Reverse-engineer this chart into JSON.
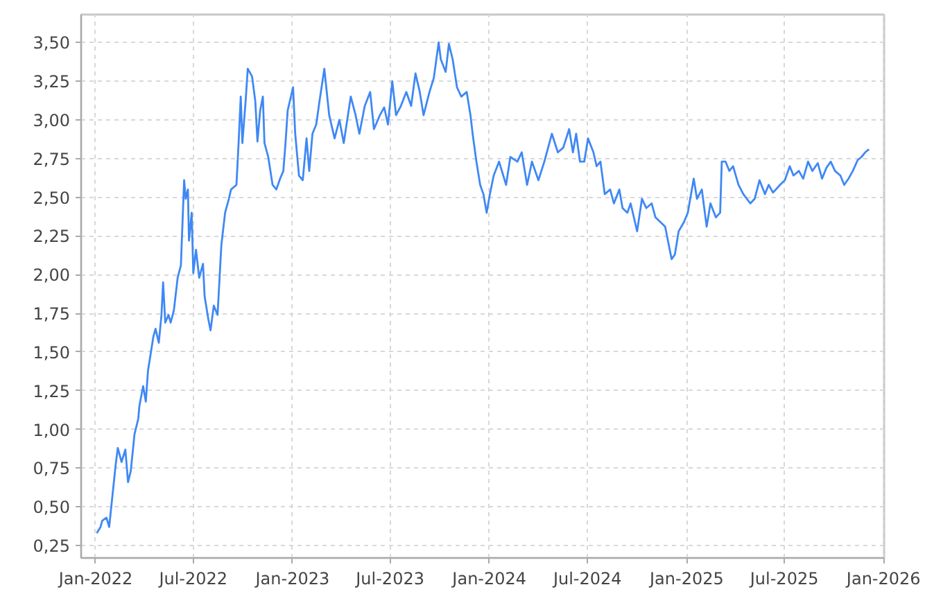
{
  "chart_data": {
    "type": "line",
    "x": [
      "2022-01-03",
      "2022-01-10",
      "2022-01-13",
      "2022-01-21",
      "2022-01-26",
      "2022-02-07",
      "2022-02-11",
      "2022-02-18",
      "2022-02-25",
      "2022-03-02",
      "2022-03-07",
      "2022-03-14",
      "2022-03-21",
      "2022-03-23",
      "2022-03-30",
      "2022-04-04",
      "2022-04-08",
      "2022-04-18",
      "2022-04-22",
      "2022-04-28",
      "2022-05-03",
      "2022-05-06",
      "2022-05-10",
      "2022-05-16",
      "2022-05-20",
      "2022-05-26",
      "2022-06-02",
      "2022-06-08",
      "2022-06-14",
      "2022-06-17",
      "2022-06-21",
      "2022-06-23",
      "2022-06-28",
      "2022-07-01",
      "2022-07-06",
      "2022-07-12",
      "2022-07-19",
      "2022-07-22",
      "2022-07-29",
      "2022-08-02",
      "2022-08-08",
      "2022-08-15",
      "2022-08-22",
      "2022-08-29",
      "2022-09-05",
      "2022-09-09",
      "2022-09-19",
      "2022-09-23",
      "2022-09-27",
      "2022-09-30",
      "2022-10-06",
      "2022-10-10",
      "2022-10-18",
      "2022-10-24",
      "2022-10-28",
      "2022-11-02",
      "2022-11-07",
      "2022-11-10",
      "2022-11-17",
      "2022-11-25",
      "2022-12-02",
      "2022-12-09",
      "2022-12-15",
      "2022-12-19",
      "2022-12-23",
      "2023-01-02",
      "2023-01-06",
      "2023-01-13",
      "2023-01-20",
      "2023-01-27",
      "2023-02-01",
      "2023-02-07",
      "2023-02-14",
      "2023-02-20",
      "2023-03-01",
      "2023-03-10",
      "2023-03-20",
      "2023-03-29",
      "2023-04-06",
      "2023-04-19",
      "2023-04-28",
      "2023-05-05",
      "2023-05-15",
      "2023-05-25",
      "2023-06-01",
      "2023-06-12",
      "2023-06-20",
      "2023-06-27",
      "2023-07-05",
      "2023-07-12",
      "2023-07-21",
      "2023-07-31",
      "2023-08-09",
      "2023-08-17",
      "2023-08-25",
      "2023-09-01",
      "2023-09-12",
      "2023-09-20",
      "2023-09-29",
      "2023-10-03",
      "2023-10-12",
      "2023-10-18",
      "2023-10-25",
      "2023-11-02",
      "2023-11-10",
      "2023-11-20",
      "2023-11-27",
      "2023-12-01",
      "2023-12-08",
      "2023-12-15",
      "2023-12-21",
      "2023-12-27",
      "2024-01-02",
      "2024-01-09",
      "2024-01-19",
      "2024-02-01",
      "2024-02-09",
      "2024-02-22",
      "2024-03-01",
      "2024-03-11",
      "2024-03-20",
      "2024-04-01",
      "2024-04-12",
      "2024-04-26",
      "2024-05-07",
      "2024-05-17",
      "2024-05-28",
      "2024-06-04",
      "2024-06-10",
      "2024-06-17",
      "2024-06-25",
      "2024-07-02",
      "2024-07-12",
      "2024-07-18",
      "2024-07-25",
      "2024-08-02",
      "2024-08-12",
      "2024-08-19",
      "2024-08-29",
      "2024-09-04",
      "2024-09-13",
      "2024-09-19",
      "2024-10-01",
      "2024-10-10",
      "2024-10-18",
      "2024-10-28",
      "2024-11-04",
      "2024-11-13",
      "2024-11-22",
      "2024-12-04",
      "2024-12-10",
      "2024-12-17",
      "2024-12-27",
      "2025-01-03",
      "2025-01-14",
      "2025-01-20",
      "2025-01-29",
      "2025-02-07",
      "2025-02-14",
      "2025-02-24",
      "2025-03-04",
      "2025-03-07",
      "2025-03-14",
      "2025-03-21",
      "2025-03-28",
      "2025-04-07",
      "2025-04-16",
      "2025-04-29",
      "2025-05-07",
      "2025-05-16",
      "2025-05-26",
      "2025-06-02",
      "2025-06-10",
      "2025-06-23",
      "2025-07-02",
      "2025-07-11",
      "2025-07-18",
      "2025-07-28",
      "2025-08-05",
      "2025-08-14",
      "2025-08-22",
      "2025-09-01",
      "2025-09-09",
      "2025-09-17",
      "2025-09-25",
      "2025-10-03",
      "2025-10-13",
      "2025-10-20",
      "2025-10-28",
      "2025-11-05",
      "2025-11-14",
      "2025-11-21",
      "2025-11-28",
      "2025-12-05"
    ],
    "values": [
      0.33,
      0.37,
      0.41,
      0.43,
      0.37,
      0.77,
      0.88,
      0.79,
      0.87,
      0.66,
      0.73,
      0.97,
      1.07,
      1.15,
      1.28,
      1.18,
      1.38,
      1.6,
      1.65,
      1.56,
      1.74,
      1.95,
      1.69,
      1.74,
      1.69,
      1.77,
      1.98,
      2.06,
      2.61,
      2.49,
      2.55,
      2.22,
      2.4,
      2.01,
      2.16,
      1.98,
      2.07,
      1.86,
      1.71,
      1.64,
      1.8,
      1.74,
      2.19,
      2.4,
      2.49,
      2.55,
      2.58,
      2.85,
      3.15,
      2.85,
      3.12,
      3.33,
      3.28,
      3.12,
      2.86,
      3.06,
      3.15,
      2.85,
      2.76,
      2.58,
      2.55,
      2.62,
      2.67,
      2.85,
      3.06,
      3.21,
      2.91,
      2.64,
      2.61,
      2.88,
      2.67,
      2.91,
      2.97,
      3.12,
      3.33,
      3.03,
      2.88,
      3.0,
      2.85,
      3.15,
      3.03,
      2.91,
      3.09,
      3.18,
      2.94,
      3.03,
      3.08,
      2.97,
      3.25,
      3.03,
      3.09,
      3.18,
      3.09,
      3.3,
      3.18,
      3.03,
      3.18,
      3.27,
      3.5,
      3.39,
      3.31,
      3.49,
      3.39,
      3.21,
      3.15,
      3.18,
      3.03,
      2.91,
      2.73,
      2.58,
      2.52,
      2.4,
      2.52,
      2.64,
      2.73,
      2.58,
      2.76,
      2.73,
      2.79,
      2.58,
      2.73,
      2.61,
      2.73,
      2.91,
      2.79,
      2.82,
      2.94,
      2.79,
      2.91,
      2.73,
      2.73,
      2.88,
      2.79,
      2.7,
      2.73,
      2.52,
      2.55,
      2.46,
      2.55,
      2.43,
      2.4,
      2.46,
      2.28,
      2.49,
      2.43,
      2.46,
      2.37,
      2.34,
      2.31,
      2.1,
      2.13,
      2.28,
      2.34,
      2.4,
      2.62,
      2.49,
      2.55,
      2.31,
      2.46,
      2.37,
      2.4,
      2.73,
      2.73,
      2.67,
      2.7,
      2.58,
      2.52,
      2.46,
      2.49,
      2.61,
      2.52,
      2.58,
      2.53,
      2.58,
      2.61,
      2.7,
      2.64,
      2.67,
      2.62,
      2.73,
      2.67,
      2.72,
      2.62,
      2.69,
      2.73,
      2.67,
      2.64,
      2.58,
      2.62,
      2.67,
      2.74,
      2.76,
      2.79,
      2.81
    ],
    "color": "#3f88f5",
    "line_style": "solid",
    "xlim": [
      "2021-12-05",
      "2026-01-02"
    ],
    "xticks": [
      {
        "value": "2022-01-01",
        "label": "Jan-2022"
      },
      {
        "value": "2022-07-01",
        "label": "Jul-2022"
      },
      {
        "value": "2023-01-01",
        "label": "Jan-2023"
      },
      {
        "value": "2023-07-01",
        "label": "Jul-2023"
      },
      {
        "value": "2024-01-01",
        "label": "Jan-2024"
      },
      {
        "value": "2024-07-01",
        "label": "Jul-2024"
      },
      {
        "value": "2025-01-01",
        "label": "Jan-2025"
      },
      {
        "value": "2025-07-01",
        "label": "Jul-2025"
      },
      {
        "value": "2026-01-01",
        "label": "Jan-2026"
      }
    ],
    "ylim": [
      0.17,
      3.68
    ],
    "yticks": [
      {
        "value": 0.25,
        "label": "0,25"
      },
      {
        "value": 0.5,
        "label": "0,50"
      },
      {
        "value": 0.75,
        "label": "0,75"
      },
      {
        "value": 1.0,
        "label": "1,00"
      },
      {
        "value": 1.25,
        "label": "1,25"
      },
      {
        "value": 1.5,
        "label": "1,50"
      },
      {
        "value": 1.75,
        "label": "1,75"
      },
      {
        "value": 2.0,
        "label": "2,00"
      },
      {
        "value": 2.25,
        "label": "2,25"
      },
      {
        "value": 2.5,
        "label": "2,50"
      },
      {
        "value": 2.75,
        "label": "2,75"
      },
      {
        "value": 3.0,
        "label": "3,00"
      },
      {
        "value": 3.25,
        "label": "3,25"
      },
      {
        "value": 3.5,
        "label": "3,50"
      }
    ],
    "grid": true
  }
}
